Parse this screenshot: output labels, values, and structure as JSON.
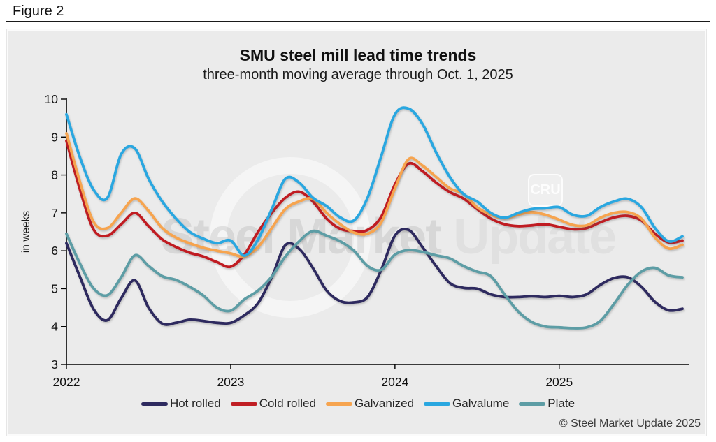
{
  "figure_label": "Figure 2",
  "watermark": {
    "text_primary": "Steel Market",
    "text_secondary": " Update",
    "cru_label": "CRU"
  },
  "footer": {
    "copyright": "© Steel Market Update 2025"
  },
  "chart_data": {
    "type": "line",
    "title": "SMU steel mill lead time trends",
    "subtitle": "three-month moving average through Oct. 1, 2025",
    "ylabel": "in weeks",
    "ylim": [
      3,
      10
    ],
    "yticks": [
      3,
      4,
      5,
      6,
      7,
      8,
      9,
      10
    ],
    "grid": false,
    "legend_position": "bottom",
    "x_unit": "months since Jan 2022, data through Oct 1 2025",
    "x_year_ticks": [
      {
        "label": "2022",
        "month": 0
      },
      {
        "label": "2023",
        "month": 12
      },
      {
        "label": "2024",
        "month": 24
      },
      {
        "label": "2025",
        "month": 36
      }
    ],
    "series": [
      {
        "name": "Hot rolled",
        "color": "#2e2a5f",
        "values": [
          6.2,
          5.3,
          4.45,
          4.17,
          4.75,
          5.22,
          4.5,
          4.08,
          4.1,
          4.18,
          4.15,
          4.1,
          4.1,
          4.3,
          4.62,
          5.3,
          6.15,
          6.05,
          5.55,
          4.95,
          4.67,
          4.64,
          4.78,
          5.5,
          6.4,
          6.55,
          6.1,
          5.6,
          5.15,
          5.02,
          5.0,
          4.85,
          4.78,
          4.78,
          4.8,
          4.78,
          4.81,
          4.78,
          4.85,
          5.1,
          5.28,
          5.3,
          5.05,
          4.65,
          4.43,
          4.47
        ]
      },
      {
        "name": "Cold rolled",
        "color": "#c01e24",
        "values": [
          8.9,
          7.6,
          6.55,
          6.4,
          6.7,
          7.0,
          6.65,
          6.3,
          6.1,
          5.95,
          5.85,
          5.7,
          5.58,
          5.9,
          6.5,
          7.0,
          7.4,
          7.56,
          7.3,
          6.85,
          6.58,
          6.52,
          6.55,
          6.9,
          7.75,
          8.3,
          8.1,
          7.8,
          7.55,
          7.38,
          7.1,
          6.85,
          6.7,
          6.65,
          6.67,
          6.7,
          6.63,
          6.57,
          6.6,
          6.75,
          6.88,
          6.92,
          6.8,
          6.45,
          6.22,
          6.27
        ]
      },
      {
        "name": "Galvanized",
        "color": "#f6a44f",
        "values": [
          9.1,
          7.8,
          6.75,
          6.6,
          7.0,
          7.38,
          7.05,
          6.6,
          6.35,
          6.2,
          6.08,
          6.0,
          5.93,
          5.85,
          6.1,
          6.6,
          7.1,
          7.3,
          7.37,
          7.0,
          6.7,
          6.48,
          6.45,
          6.75,
          7.65,
          8.42,
          8.25,
          7.95,
          7.65,
          7.5,
          7.15,
          6.95,
          6.86,
          6.95,
          7.02,
          6.95,
          6.82,
          6.68,
          6.67,
          6.87,
          7.0,
          7.02,
          6.85,
          6.35,
          6.06,
          6.16
        ]
      },
      {
        "name": "Galvalume",
        "color": "#29a7e0",
        "values": [
          9.6,
          8.45,
          7.6,
          7.4,
          8.55,
          8.7,
          7.9,
          7.3,
          6.85,
          6.5,
          6.32,
          6.2,
          6.27,
          5.87,
          6.3,
          7.1,
          7.9,
          7.8,
          7.4,
          7.18,
          6.88,
          6.8,
          7.4,
          8.5,
          9.6,
          9.75,
          9.35,
          8.6,
          7.95,
          7.5,
          7.3,
          7.0,
          6.87,
          7.0,
          7.1,
          7.12,
          7.15,
          6.95,
          6.92,
          7.15,
          7.3,
          7.37,
          7.15,
          6.6,
          6.25,
          6.38
        ]
      },
      {
        "name": "Plate",
        "color": "#5d9da5",
        "values": [
          6.45,
          5.65,
          5.0,
          4.83,
          5.3,
          5.88,
          5.6,
          5.33,
          5.23,
          5.05,
          4.82,
          4.5,
          4.42,
          4.72,
          4.95,
          5.32,
          5.85,
          6.25,
          6.52,
          6.4,
          6.25,
          6.0,
          5.6,
          5.5,
          5.9,
          6.02,
          5.97,
          5.88,
          5.8,
          5.6,
          5.45,
          5.33,
          4.85,
          4.4,
          4.12,
          4.0,
          3.98,
          3.96,
          3.98,
          4.15,
          4.6,
          5.1,
          5.45,
          5.55,
          5.35,
          5.3
        ]
      }
    ]
  }
}
